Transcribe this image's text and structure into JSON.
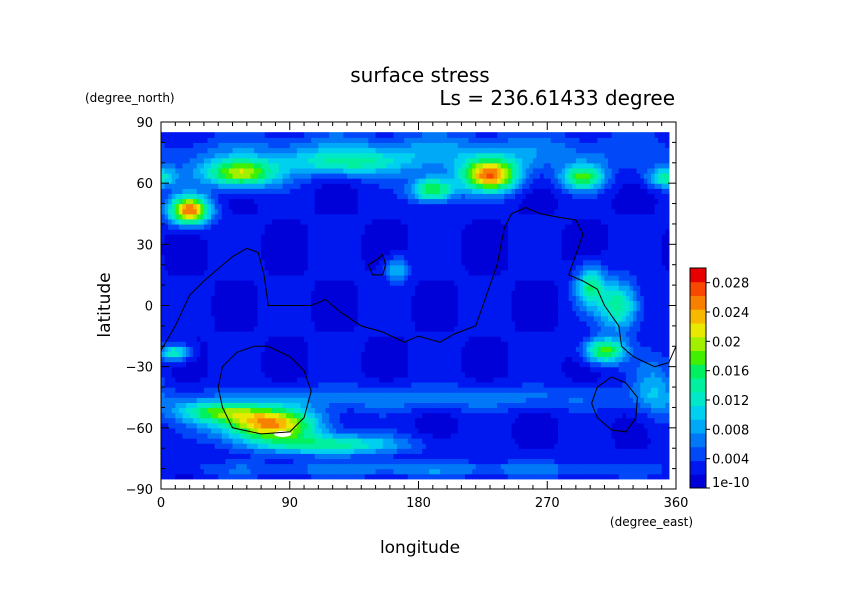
{
  "chart_data": {
    "type": "heatmap",
    "title": "surface stress",
    "subtitle": "Ls = 236.61433 degree",
    "xlabel": "longitude",
    "ylabel": "latitude",
    "x_unit": "(degree_east)",
    "y_unit": "(degree_north)",
    "xlim": [
      0,
      360
    ],
    "ylim": [
      -90,
      90
    ],
    "x_ticks": [
      0,
      90,
      180,
      270,
      360
    ],
    "y_ticks": [
      -90,
      -60,
      -30,
      0,
      30,
      60,
      90
    ],
    "x_tick_labels": [
      "0",
      "90",
      "180",
      "270",
      "360"
    ],
    "y_tick_labels": [
      "−90",
      "−60",
      "−30",
      "0",
      "30",
      "60",
      "90"
    ],
    "colorbar": {
      "min": 0,
      "max": 0.03,
      "tick_values": [
        0,
        0.004,
        0.008,
        0.012,
        0.016,
        0.02,
        0.024,
        0.028
      ],
      "tick_labels": [
        "1e-10",
        "0.004",
        "0.008",
        "0.012",
        "0.016",
        "0.02",
        "0.024",
        "0.028"
      ],
      "colors": [
        "#0000d8",
        "#0018f0",
        "#0048f8",
        "#0078f8",
        "#00a8f8",
        "#00d0f0",
        "#00e8c8",
        "#00f0a0",
        "#00f060",
        "#40f000",
        "#a0f000",
        "#e8e800",
        "#f8b800",
        "#f88000",
        "#f84800",
        "#e80000"
      ]
    },
    "field": {
      "background": 0.002,
      "features": [
        {
          "lon": 20,
          "lat": 47,
          "rlon": 14,
          "rlat": 7,
          "value": 0.024
        },
        {
          "lon": 55,
          "lat": 65,
          "rlon": 25,
          "rlat": 7,
          "value": 0.018
        },
        {
          "lon": 230,
          "lat": 64,
          "rlon": 20,
          "rlat": 8,
          "value": 0.022
        },
        {
          "lon": 190,
          "lat": 57,
          "rlon": 15,
          "rlat": 6,
          "value": 0.016
        },
        {
          "lon": 295,
          "lat": 63,
          "rlon": 15,
          "rlat": 6,
          "value": 0.014
        },
        {
          "lon": 355,
          "lat": 63,
          "rlon": 15,
          "rlat": 5,
          "value": 0.012
        },
        {
          "lon": 130,
          "lat": 70,
          "rlon": 40,
          "rlat": 6,
          "value": 0.008
        },
        {
          "lon": 180,
          "lat": 75,
          "rlon": 180,
          "rlat": 10,
          "value": 0.006
        },
        {
          "lon": 75,
          "lat": -58,
          "rlon": 35,
          "rlat": 8,
          "value": 0.022
        },
        {
          "lon": 40,
          "lat": -52,
          "rlon": 30,
          "rlat": 5,
          "value": 0.012
        },
        {
          "lon": 120,
          "lat": -68,
          "rlon": 50,
          "rlat": 5,
          "value": 0.012
        },
        {
          "lon": 310,
          "lat": -22,
          "rlon": 14,
          "rlat": 6,
          "value": 0.016
        },
        {
          "lon": 320,
          "lat": 0,
          "rlon": 14,
          "rlat": 12,
          "value": 0.013
        },
        {
          "lon": 300,
          "lat": 10,
          "rlon": 10,
          "rlat": 10,
          "value": 0.012
        },
        {
          "lon": 10,
          "lat": -23,
          "rlon": 10,
          "rlat": 4,
          "value": 0.012
        },
        {
          "lon": 165,
          "lat": 18,
          "rlon": 8,
          "rlat": 6,
          "value": 0.008
        },
        {
          "lon": 345,
          "lat": -40,
          "rlon": 15,
          "rlat": 15,
          "value": 0.006
        },
        {
          "lon": 180,
          "lat": -45,
          "rlon": 180,
          "rlat": 6,
          "value": 0.005
        },
        {
          "lon": 180,
          "lat": -80,
          "rlon": 180,
          "rlat": 4,
          "value": 0.005
        }
      ],
      "min_contour": {
        "lon": 85,
        "lat": -63,
        "rlon": 6,
        "rlat": 1.5
      }
    },
    "contours": [
      {
        "points": [
          [
            0,
            -22
          ],
          [
            10,
            -10
          ],
          [
            20,
            5
          ],
          [
            30,
            12
          ],
          [
            40,
            18
          ],
          [
            50,
            24
          ],
          [
            60,
            28
          ],
          [
            68,
            26
          ],
          [
            72,
            15
          ],
          [
            75,
            0
          ],
          [
            90,
            0
          ],
          [
            105,
            0
          ],
          [
            115,
            3
          ],
          [
            125,
            -3
          ],
          [
            140,
            -10
          ],
          [
            155,
            -13
          ],
          [
            170,
            -18
          ],
          [
            180,
            -15
          ],
          [
            195,
            -18
          ],
          [
            205,
            -14
          ],
          [
            220,
            -10
          ],
          [
            225,
            0
          ],
          [
            230,
            10
          ],
          [
            235,
            20
          ],
          [
            240,
            38
          ],
          [
            245,
            45
          ],
          [
            255,
            48
          ],
          [
            265,
            45
          ],
          [
            280,
            43
          ],
          [
            290,
            42
          ],
          [
            295,
            35
          ],
          [
            290,
            25
          ],
          [
            285,
            15
          ],
          [
            295,
            12
          ],
          [
            305,
            8
          ],
          [
            310,
            0
          ],
          [
            315,
            -5
          ],
          [
            320,
            -10
          ],
          [
            322,
            -20
          ],
          [
            330,
            -25
          ],
          [
            345,
            -30
          ],
          [
            355,
            -28
          ],
          [
            360,
            -20
          ]
        ]
      },
      {
        "points": [
          [
            145,
            20
          ],
          [
            150,
            22
          ],
          [
            155,
            25
          ],
          [
            157,
            20
          ],
          [
            155,
            15
          ],
          [
            148,
            15
          ],
          [
            145,
            20
          ]
        ]
      },
      {
        "points": [
          [
            65,
            -20
          ],
          [
            75,
            -20
          ],
          [
            90,
            -25
          ],
          [
            100,
            -32
          ],
          [
            105,
            -42
          ],
          [
            100,
            -55
          ],
          [
            90,
            -62
          ],
          [
            70,
            -63
          ],
          [
            50,
            -60
          ],
          [
            43,
            -50
          ],
          [
            40,
            -40
          ],
          [
            43,
            -30
          ],
          [
            53,
            -23
          ],
          [
            65,
            -20
          ]
        ]
      },
      {
        "points": [
          [
            305,
            -40
          ],
          [
            315,
            -35
          ],
          [
            325,
            -38
          ],
          [
            333,
            -45
          ],
          [
            332,
            -55
          ],
          [
            325,
            -62
          ],
          [
            315,
            -61
          ],
          [
            305,
            -55
          ],
          [
            301,
            -48
          ],
          [
            305,
            -40
          ]
        ]
      }
    ]
  }
}
